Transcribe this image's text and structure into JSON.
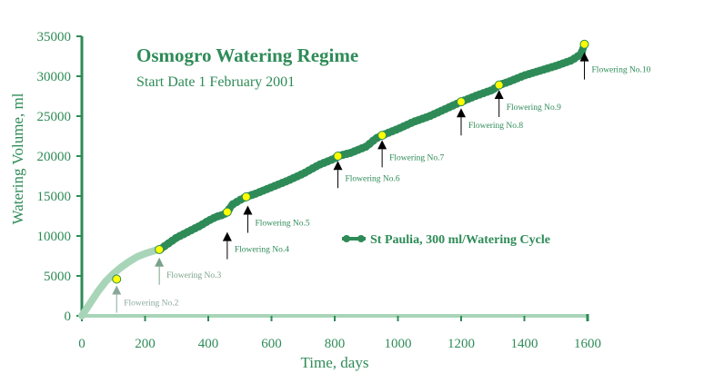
{
  "chart_data": {
    "type": "line",
    "title": "Osmogro Watering Regime",
    "subtitle": "Start Date 1 February 2001",
    "xlabel": "Time, days",
    "ylabel": "Watering Volume, ml",
    "xlim": [
      0,
      1600
    ],
    "ylim": [
      0,
      35000
    ],
    "x_ticks": [
      "0",
      "200",
      "400",
      "600",
      "800",
      "1000",
      "1200",
      "1400",
      "1600"
    ],
    "y_ticks": [
      "0",
      "5000",
      "10000",
      "15000",
      "20000",
      "25000",
      "30000",
      "35000"
    ],
    "series": [
      {
        "name": "St Paulia, 300 ml/Watering Cycle",
        "color": "#2e8b57",
        "x": [
          0,
          25,
          50,
          75,
          100,
          125,
          150,
          175,
          200,
          225,
          250,
          275,
          300,
          325,
          350,
          375,
          400,
          425,
          450,
          460,
          475,
          500,
          520,
          550,
          575,
          600,
          650,
          700,
          750,
          800,
          810,
          850,
          900,
          930,
          950,
          1000,
          1050,
          1100,
          1150,
          1200,
          1250,
          1300,
          1320,
          1350,
          1400,
          1450,
          1500,
          1550,
          1580,
          1590
        ],
        "y": [
          0,
          1500,
          3000,
          4300,
          5300,
          6100,
          6800,
          7400,
          7800,
          8100,
          8400,
          9100,
          9800,
          10300,
          10800,
          11300,
          11900,
          12400,
          12700,
          13000,
          13900,
          14500,
          14900,
          15300,
          15700,
          16100,
          16900,
          17800,
          18900,
          19700,
          20000,
          20400,
          21200,
          22200,
          22600,
          23400,
          24300,
          25000,
          25900,
          26800,
          27600,
          28300,
          28900,
          29300,
          30100,
          30700,
          31300,
          32000,
          32800,
          34000
        ]
      }
    ],
    "highlight_points": {
      "x": [
        110,
        245,
        460,
        520,
        810,
        950,
        1200,
        1320,
        1590
      ],
      "y": [
        4600,
        8300,
        13000,
        14900,
        20000,
        22600,
        26800,
        28900,
        34000
      ],
      "color": "#ffff00"
    },
    "annotations": [
      {
        "label": "Flowering No.2",
        "x": 110,
        "y": 3800,
        "color": "#8aa89a"
      },
      {
        "label": "Flowering No.3",
        "x": 245,
        "y": 7300,
        "color": "#7aa28a"
      },
      {
        "label": "Flowering No.4",
        "x": 460,
        "y": 10500,
        "color": "#2e8b57"
      },
      {
        "label": "Flowering No.5",
        "x": 525,
        "y": 13800,
        "color": "#2e8b57"
      },
      {
        "label": "Flowering No.6",
        "x": 810,
        "y": 19400,
        "color": "#2e8b57"
      },
      {
        "label": "Flowering No.7",
        "x": 950,
        "y": 22000,
        "color": "#2e8b57"
      },
      {
        "label": "Flowering No.8",
        "x": 1200,
        "y": 26000,
        "color": "#2e8b57"
      },
      {
        "label": "Flowering No.9",
        "x": 1320,
        "y": 28300,
        "color": "#2e8b57"
      },
      {
        "label": "Flowering No.10",
        "x": 1590,
        "y": 33000,
        "color": "#2e8b57"
      }
    ],
    "legend": "right",
    "grid": false
  }
}
